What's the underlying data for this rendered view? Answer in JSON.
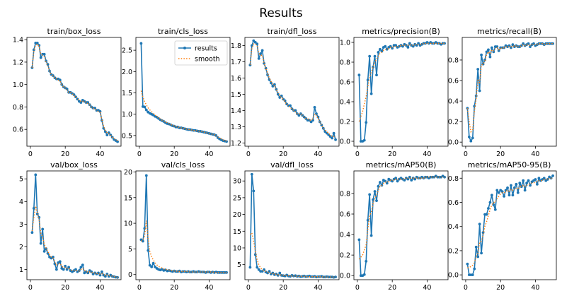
{
  "figure": {
    "title": "Results"
  },
  "legend": {
    "results_label": "results",
    "smooth_label": "smooth"
  },
  "colors": {
    "results": "#1f77b4",
    "smooth": "#ff7f0e",
    "axis": "#000000"
  },
  "chart_data": [
    {
      "type": "line",
      "title": "train/box_loss",
      "legend": false,
      "xlim": [
        -2,
        52
      ],
      "ylim": [
        0.45,
        1.42
      ],
      "xticks": [
        0,
        20,
        40
      ],
      "yticks": [
        0.6,
        0.8,
        1.0,
        1.2,
        1.4
      ],
      "ytick_labels": [
        "0.6",
        "0.8",
        "1.0",
        "1.2",
        "1.4"
      ],
      "x_start": 1,
      "results": [
        1.15,
        1.31,
        1.37,
        1.37,
        1.35,
        1.24,
        1.27,
        1.27,
        1.21,
        1.18,
        1.12,
        1.09,
        1.08,
        1.06,
        1.05,
        1.05,
        1.04,
        1.0,
        0.98,
        0.97,
        0.96,
        0.93,
        0.93,
        0.92,
        0.91,
        0.89,
        0.87,
        0.85,
        0.84,
        0.86,
        0.85,
        0.84,
        0.84,
        0.82,
        0.8,
        0.79,
        0.79,
        0.77,
        0.77,
        0.76,
        0.68,
        0.61,
        0.58,
        0.55,
        0.57,
        0.55,
        0.53,
        0.51,
        0.5,
        0.49
      ],
      "smooth": [
        1.15,
        1.3,
        1.35,
        1.36,
        1.34,
        1.27,
        1.26,
        1.25,
        1.2,
        1.17,
        1.12,
        1.09,
        1.08,
        1.06,
        1.05,
        1.04,
        1.03,
        1.0,
        0.98,
        0.97,
        0.95,
        0.93,
        0.93,
        0.92,
        0.9,
        0.89,
        0.87,
        0.86,
        0.85,
        0.85,
        0.85,
        0.84,
        0.83,
        0.82,
        0.8,
        0.79,
        0.78,
        0.77,
        0.76,
        0.75,
        0.69,
        0.63,
        0.59,
        0.57,
        0.56,
        0.55,
        0.53,
        0.52,
        0.51,
        0.5
      ]
    },
    {
      "type": "line",
      "title": "train/cls_loss",
      "legend": true,
      "xlim": [
        -2,
        52
      ],
      "ylim": [
        0.25,
        2.8
      ],
      "xticks": [
        0,
        20,
        40
      ],
      "yticks": [
        0.5,
        1.0,
        1.5,
        2.0,
        2.5
      ],
      "ytick_labels": [
        "0.5",
        "1.0",
        "1.5",
        "2.0",
        "2.5"
      ],
      "x_start": 1,
      "results": [
        2.66,
        1.18,
        1.17,
        1.1,
        1.05,
        1.02,
        1.0,
        0.98,
        0.95,
        0.93,
        0.9,
        0.87,
        0.85,
        0.83,
        0.8,
        0.78,
        0.77,
        0.75,
        0.73,
        0.72,
        0.7,
        0.7,
        0.68,
        0.68,
        0.67,
        0.66,
        0.65,
        0.64,
        0.64,
        0.63,
        0.62,
        0.62,
        0.61,
        0.6,
        0.6,
        0.59,
        0.58,
        0.57,
        0.56,
        0.55,
        0.54,
        0.53,
        0.52,
        0.5,
        0.45,
        0.42,
        0.4,
        0.38,
        0.37,
        0.36
      ],
      "smooth": [
        1.55,
        1.4,
        1.3,
        1.22,
        1.15,
        1.1,
        1.06,
        1.02,
        0.98,
        0.95,
        0.92,
        0.89,
        0.86,
        0.84,
        0.82,
        0.8,
        0.78,
        0.76,
        0.74,
        0.73,
        0.71,
        0.7,
        0.69,
        0.68,
        0.67,
        0.66,
        0.65,
        0.64,
        0.64,
        0.63,
        0.62,
        0.62,
        0.61,
        0.6,
        0.6,
        0.59,
        0.58,
        0.57,
        0.56,
        0.55,
        0.54,
        0.53,
        0.52,
        0.5,
        0.47,
        0.44,
        0.42,
        0.4,
        0.38,
        0.37
      ]
    },
    {
      "type": "line",
      "title": "train/dfl_loss",
      "legend": false,
      "xlim": [
        -2,
        52
      ],
      "ylim": [
        1.18,
        1.85
      ],
      "xticks": [
        0,
        20,
        40
      ],
      "yticks": [
        1.2,
        1.3,
        1.4,
        1.5,
        1.6,
        1.7,
        1.8
      ],
      "ytick_labels": [
        "1.2",
        "1.3",
        "1.4",
        "1.5",
        "1.6",
        "1.7",
        "1.8"
      ],
      "x_start": 1,
      "results": [
        1.68,
        1.8,
        1.83,
        1.82,
        1.81,
        1.72,
        1.75,
        1.77,
        1.69,
        1.66,
        1.62,
        1.59,
        1.57,
        1.55,
        1.56,
        1.53,
        1.5,
        1.48,
        1.49,
        1.47,
        1.46,
        1.44,
        1.43,
        1.43,
        1.41,
        1.4,
        1.4,
        1.38,
        1.37,
        1.38,
        1.37,
        1.36,
        1.35,
        1.34,
        1.34,
        1.33,
        1.34,
        1.42,
        1.38,
        1.36,
        1.33,
        1.31,
        1.29,
        1.27,
        1.26,
        1.25,
        1.24,
        1.23,
        1.26,
        1.22
      ],
      "smooth": [
        1.68,
        1.78,
        1.81,
        1.81,
        1.8,
        1.75,
        1.74,
        1.74,
        1.69,
        1.66,
        1.63,
        1.6,
        1.58,
        1.56,
        1.55,
        1.53,
        1.51,
        1.49,
        1.48,
        1.47,
        1.45,
        1.44,
        1.43,
        1.42,
        1.41,
        1.4,
        1.39,
        1.38,
        1.38,
        1.38,
        1.37,
        1.36,
        1.35,
        1.35,
        1.34,
        1.34,
        1.35,
        1.38,
        1.37,
        1.35,
        1.33,
        1.31,
        1.29,
        1.28,
        1.27,
        1.26,
        1.25,
        1.24,
        1.24,
        1.23
      ]
    },
    {
      "type": "line",
      "title": "metrics/precision(B)",
      "legend": false,
      "xlim": [
        -2,
        52
      ],
      "ylim": [
        -0.05,
        1.05
      ],
      "xticks": [
        0,
        20,
        40
      ],
      "yticks": [
        0.0,
        0.2,
        0.4,
        0.6,
        0.8,
        1.0
      ],
      "ytick_labels": [
        "0.0",
        "0.2",
        "0.4",
        "0.6",
        "0.8",
        "1.0"
      ],
      "x_start": 1,
      "results": [
        0.67,
        0.0,
        0.0,
        0.01,
        0.19,
        0.62,
        0.86,
        0.48,
        0.75,
        0.86,
        0.67,
        0.9,
        0.93,
        0.91,
        0.95,
        0.96,
        0.93,
        0.95,
        0.96,
        0.94,
        0.97,
        0.97,
        0.95,
        0.96,
        0.97,
        0.96,
        0.98,
        0.97,
        0.95,
        0.99,
        0.97,
        0.96,
        0.98,
        0.97,
        0.99,
        0.97,
        0.98,
        0.99,
        0.99,
        1.0,
        0.99,
        1.0,
        0.99,
        0.99,
        1.0,
        0.99,
        0.99,
        0.98,
        0.99,
        0.99
      ],
      "smooth": [
        0.2,
        0.25,
        0.3,
        0.38,
        0.45,
        0.55,
        0.65,
        0.7,
        0.75,
        0.8,
        0.83,
        0.86,
        0.89,
        0.9,
        0.92,
        0.93,
        0.93,
        0.94,
        0.95,
        0.95,
        0.96,
        0.96,
        0.96,
        0.96,
        0.97,
        0.97,
        0.97,
        0.97,
        0.97,
        0.98,
        0.97,
        0.97,
        0.98,
        0.98,
        0.98,
        0.98,
        0.98,
        0.99,
        0.99,
        0.99,
        0.99,
        0.99,
        0.99,
        0.99,
        0.99,
        0.99,
        0.99,
        0.99,
        0.99,
        0.99
      ]
    },
    {
      "type": "line",
      "title": "metrics/recall(B)",
      "legend": false,
      "xlim": [
        -2,
        52
      ],
      "ylim": [
        -0.04,
        1.02
      ],
      "xticks": [
        0,
        20,
        40
      ],
      "yticks": [
        0.0,
        0.2,
        0.4,
        0.6,
        0.8
      ],
      "ytick_labels": [
        "0.0",
        "0.2",
        "0.4",
        "0.6",
        "0.8"
      ],
      "x_start": 1,
      "results": [
        0.33,
        0.05,
        0.01,
        0.04,
        0.35,
        0.45,
        0.71,
        0.5,
        0.85,
        0.76,
        0.8,
        0.88,
        0.9,
        0.83,
        0.92,
        0.88,
        0.93,
        0.93,
        0.89,
        0.92,
        0.92,
        0.92,
        0.94,
        0.93,
        0.94,
        0.92,
        0.95,
        0.93,
        0.94,
        0.93,
        0.93,
        0.94,
        0.96,
        0.94,
        0.95,
        0.96,
        0.93,
        0.95,
        0.96,
        0.94,
        0.95,
        0.96,
        0.96,
        0.96,
        0.95,
        0.96,
        0.96,
        0.96,
        0.96,
        0.96
      ],
      "smooth": [
        0.33,
        0.2,
        0.1,
        0.12,
        0.3,
        0.42,
        0.6,
        0.58,
        0.75,
        0.76,
        0.79,
        0.85,
        0.88,
        0.86,
        0.9,
        0.89,
        0.91,
        0.92,
        0.9,
        0.91,
        0.92,
        0.92,
        0.93,
        0.93,
        0.93,
        0.93,
        0.94,
        0.93,
        0.94,
        0.93,
        0.93,
        0.94,
        0.95,
        0.94,
        0.95,
        0.95,
        0.94,
        0.95,
        0.95,
        0.95,
        0.95,
        0.96,
        0.96,
        0.96,
        0.95,
        0.96,
        0.96,
        0.96,
        0.96,
        0.96
      ]
    },
    {
      "type": "line",
      "title": "val/box_loss",
      "legend": false,
      "xlim": [
        -2,
        52
      ],
      "ylim": [
        0.55,
        5.35
      ],
      "xticks": [
        0,
        20,
        40
      ],
      "yticks": [
        1,
        2,
        3,
        4,
        5
      ],
      "ytick_labels": [
        "1",
        "2",
        "3",
        "4",
        "5"
      ],
      "x_start": 1,
      "results": [
        2.63,
        3.7,
        5.18,
        3.45,
        3.3,
        2.15,
        2.78,
        1.8,
        1.92,
        1.71,
        1.55,
        1.5,
        1.55,
        1.25,
        1.0,
        1.3,
        1.35,
        1.05,
        1.0,
        1.15,
        1.0,
        1.1,
        0.95,
        0.9,
        0.95,
        1.0,
        0.9,
        0.95,
        1.1,
        1.2,
        0.85,
        0.9,
        0.85,
        0.95,
        0.9,
        0.8,
        0.85,
        0.8,
        0.85,
        0.75,
        0.9,
        0.75,
        0.7,
        0.8,
        0.7,
        0.75,
        0.7,
        0.68,
        0.66,
        0.65
      ],
      "smooth": [
        2.7,
        3.3,
        3.8,
        3.5,
        3.2,
        2.6,
        2.45,
        2.1,
        1.95,
        1.8,
        1.65,
        1.55,
        1.5,
        1.35,
        1.2,
        1.25,
        1.28,
        1.15,
        1.08,
        1.1,
        1.05,
        1.05,
        1.0,
        0.95,
        0.95,
        0.97,
        0.93,
        0.93,
        1.0,
        1.05,
        0.95,
        0.92,
        0.88,
        0.9,
        0.88,
        0.84,
        0.84,
        0.82,
        0.82,
        0.79,
        0.82,
        0.78,
        0.74,
        0.76,
        0.73,
        0.73,
        0.71,
        0.69,
        0.67,
        0.66
      ]
    },
    {
      "type": "line",
      "title": "val/cls_loss",
      "legend": false,
      "xlim": [
        -2,
        52
      ],
      "ylim": [
        -1.0,
        20.2
      ],
      "xticks": [
        0,
        20,
        40
      ],
      "yticks": [
        0,
        5,
        10,
        15,
        20
      ],
      "ytick_labels": [
        "0",
        "5",
        "10",
        "15",
        "20"
      ],
      "x_start": 1,
      "results": [
        6.8,
        6.5,
        9.0,
        19.3,
        4.7,
        1.8,
        1.5,
        2.2,
        1.5,
        1.2,
        1.0,
        0.9,
        1.0,
        0.8,
        0.9,
        0.7,
        0.8,
        0.7,
        0.6,
        0.7,
        0.6,
        0.6,
        0.7,
        0.5,
        0.6,
        0.6,
        0.5,
        0.6,
        0.5,
        0.5,
        0.6,
        0.5,
        0.5,
        0.6,
        0.5,
        0.5,
        0.5,
        0.4,
        0.5,
        0.5,
        0.4,
        0.5,
        0.4,
        0.5,
        0.4,
        0.4,
        0.4,
        0.4,
        0.4,
        0.4
      ],
      "smooth": [
        6.5,
        6.8,
        7.5,
        10.5,
        7.0,
        4.5,
        3.5,
        2.8,
        2.3,
        1.9,
        1.6,
        1.4,
        1.3,
        1.1,
        1.0,
        0.9,
        0.9,
        0.8,
        0.7,
        0.7,
        0.7,
        0.6,
        0.6,
        0.6,
        0.6,
        0.6,
        0.6,
        0.6,
        0.5,
        0.5,
        0.5,
        0.5,
        0.5,
        0.5,
        0.5,
        0.5,
        0.5,
        0.5,
        0.5,
        0.5,
        0.5,
        0.5,
        0.4,
        0.4,
        0.4,
        0.4,
        0.4,
        0.4,
        0.4,
        0.4
      ]
    },
    {
      "type": "line",
      "title": "val/dfl_loss",
      "legend": false,
      "xlim": [
        -2,
        52
      ],
      "ylim": [
        0.5,
        33.0
      ],
      "xticks": [
        0,
        20,
        40
      ],
      "yticks": [
        5,
        10,
        15,
        20,
        25,
        30
      ],
      "ytick_labels": [
        "5",
        "10",
        "15",
        "20",
        "25",
        "30"
      ],
      "x_start": 1,
      "results": [
        4.2,
        32.0,
        27.0,
        8.0,
        4.2,
        3.5,
        3.0,
        3.0,
        3.5,
        2.8,
        2.5,
        3.0,
        2.2,
        2.5,
        2.0,
        2.2,
        1.8,
        2.5,
        1.8,
        1.7,
        1.6,
        1.9,
        1.6,
        1.5,
        1.8,
        1.6,
        1.7,
        1.5,
        1.6,
        1.4,
        1.5,
        1.6,
        1.4,
        1.5,
        1.6,
        1.4,
        1.4,
        1.5,
        1.3,
        1.4,
        1.4,
        1.5,
        1.3,
        1.3,
        1.4,
        1.3,
        1.3,
        1.3,
        1.2,
        1.3
      ],
      "smooth": [
        14.0,
        14.5,
        12.0,
        9.0,
        6.5,
        5.0,
        4.0,
        3.5,
        3.2,
        3.0,
        2.8,
        2.6,
        2.4,
        2.3,
        2.2,
        2.1,
        2.0,
        2.0,
        1.9,
        1.8,
        1.8,
        1.7,
        1.7,
        1.6,
        1.6,
        1.6,
        1.6,
        1.5,
        1.5,
        1.5,
        1.5,
        1.5,
        1.4,
        1.4,
        1.4,
        1.4,
        1.4,
        1.4,
        1.4,
        1.4,
        1.4,
        1.4,
        1.3,
        1.3,
        1.3,
        1.3,
        1.3,
        1.3,
        1.3,
        1.3
      ]
    },
    {
      "type": "line",
      "title": "metrics/mAP50(B)",
      "legend": false,
      "xlim": [
        -2,
        52
      ],
      "ylim": [
        -0.04,
        1.02
      ],
      "xticks": [
        0,
        20,
        40
      ],
      "yticks": [
        0.0,
        0.2,
        0.4,
        0.6,
        0.8
      ],
      "ytick_labels": [
        "0.0",
        "0.2",
        "0.4",
        "0.6",
        "0.8"
      ],
      "x_start": 1,
      "results": [
        0.35,
        0.0,
        0.0,
        0.01,
        0.14,
        0.54,
        0.79,
        0.39,
        0.74,
        0.82,
        0.73,
        0.87,
        0.91,
        0.88,
        0.93,
        0.92,
        0.9,
        0.94,
        0.93,
        0.92,
        0.94,
        0.95,
        0.92,
        0.94,
        0.95,
        0.94,
        0.93,
        0.95,
        0.94,
        0.96,
        0.93,
        0.95,
        0.94,
        0.96,
        0.95,
        0.95,
        0.96,
        0.95,
        0.96,
        0.96,
        0.95,
        0.96,
        0.96,
        0.96,
        0.97,
        0.96,
        0.96,
        0.96,
        0.97,
        0.96
      ],
      "smooth": [
        0.16,
        0.18,
        0.2,
        0.25,
        0.3,
        0.45,
        0.58,
        0.62,
        0.7,
        0.76,
        0.78,
        0.83,
        0.87,
        0.88,
        0.9,
        0.91,
        0.91,
        0.92,
        0.93,
        0.93,
        0.93,
        0.94,
        0.94,
        0.94,
        0.94,
        0.94,
        0.94,
        0.95,
        0.95,
        0.95,
        0.95,
        0.95,
        0.95,
        0.95,
        0.95,
        0.95,
        0.95,
        0.95,
        0.96,
        0.96,
        0.96,
        0.96,
        0.96,
        0.96,
        0.96,
        0.96,
        0.96,
        0.96,
        0.96,
        0.96
      ]
    },
    {
      "type": "line",
      "title": "metrics/mAP50-95(B)",
      "legend": false,
      "xlim": [
        -2,
        52
      ],
      "ylim": [
        -0.04,
        0.86
      ],
      "xticks": [
        0,
        20,
        40
      ],
      "yticks": [
        0.0,
        0.2,
        0.4,
        0.6,
        0.8
      ],
      "ytick_labels": [
        "0.0",
        "0.2",
        "0.4",
        "0.6",
        "0.8"
      ],
      "x_start": 1,
      "results": [
        0.09,
        0.0,
        0.0,
        0.0,
        0.05,
        0.23,
        0.15,
        0.42,
        0.18,
        0.35,
        0.5,
        0.5,
        0.55,
        0.6,
        0.66,
        0.58,
        0.54,
        0.7,
        0.68,
        0.7,
        0.69,
        0.65,
        0.7,
        0.72,
        0.66,
        0.74,
        0.66,
        0.72,
        0.75,
        0.68,
        0.76,
        0.73,
        0.78,
        0.7,
        0.76,
        0.78,
        0.74,
        0.77,
        0.78,
        0.79,
        0.75,
        0.8,
        0.78,
        0.79,
        0.8,
        0.78,
        0.79,
        0.81,
        0.8,
        0.82
      ],
      "smooth": [
        0.06,
        0.06,
        0.07,
        0.08,
        0.1,
        0.15,
        0.18,
        0.27,
        0.28,
        0.33,
        0.4,
        0.44,
        0.49,
        0.54,
        0.58,
        0.6,
        0.6,
        0.63,
        0.65,
        0.67,
        0.68,
        0.68,
        0.69,
        0.7,
        0.69,
        0.71,
        0.7,
        0.71,
        0.72,
        0.71,
        0.73,
        0.73,
        0.74,
        0.73,
        0.74,
        0.75,
        0.75,
        0.76,
        0.76,
        0.77,
        0.77,
        0.78,
        0.78,
        0.78,
        0.79,
        0.79,
        0.79,
        0.8,
        0.8,
        0.8
      ]
    }
  ]
}
